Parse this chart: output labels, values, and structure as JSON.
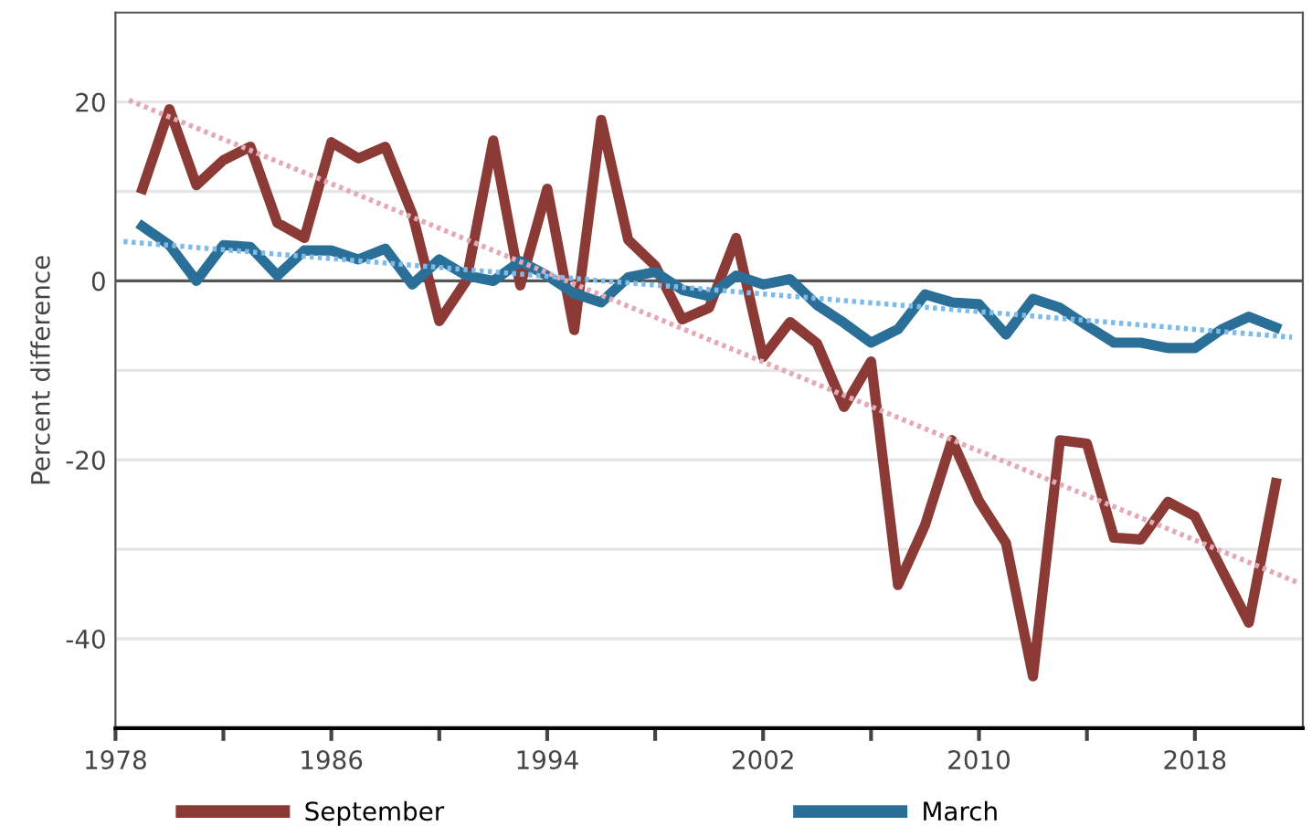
{
  "chart_data": {
    "type": "line",
    "ylabel": "Percent difference",
    "x": [
      1979,
      1980,
      1981,
      1982,
      1983,
      1984,
      1985,
      1986,
      1987,
      1988,
      1989,
      1990,
      1991,
      1992,
      1993,
      1994,
      1995,
      1996,
      1997,
      1998,
      1999,
      2000,
      2001,
      2002,
      2003,
      2004,
      2005,
      2006,
      2007,
      2008,
      2009,
      2010,
      2011,
      2012,
      2013,
      2014,
      2015,
      2016,
      2017,
      2018,
      2019,
      2020,
      2021
    ],
    "series": [
      {
        "name": "September",
        "color": "#8b3a36",
        "values": [
          10.3,
          19.2,
          10.7,
          13.5,
          15,
          6.5,
          4.8,
          15.5,
          13.7,
          15,
          7.5,
          -4.5,
          0,
          15.7,
          -0.5,
          10.3,
          -5.5,
          18,
          4.6,
          1.7,
          -4.3,
          -3,
          4.8,
          -8.5,
          -4.6,
          -7,
          -14.1,
          -9,
          -34,
          -27.3,
          -17.8,
          -24.6,
          -29.3,
          -44.2,
          -17.8,
          -18.2,
          -28.7,
          -28.9,
          -24.7,
          -26.3,
          -32.3,
          -38.2,
          -22.6
        ]
      },
      {
        "name": "March",
        "color": "#2a6f97",
        "values": [
          6.1,
          4,
          0,
          4,
          3.8,
          0.6,
          3.4,
          3.4,
          2.4,
          3.6,
          -0.4,
          2.4,
          0.6,
          0,
          2.2,
          0.6,
          -1.4,
          -2.4,
          0.4,
          1,
          -1,
          -1.7,
          0.6,
          -0.4,
          0.2,
          -2.7,
          -4.7,
          -6.9,
          -5.4,
          -1.5,
          -2.4,
          -2.6,
          -6,
          -2,
          -3,
          -5,
          -6.9,
          -6.9,
          -7.5,
          -7.5,
          -5.4,
          -4,
          -5.2
        ]
      },
      {
        "color": "#e3a9b5",
        "x": [
          1978.5,
          2021.8
        ],
        "values": [
          20.2,
          -33.7
        ],
        "line_style": "dotted"
      },
      {
        "color": "#7fbbe8",
        "x": [
          1978.3,
          2021.6
        ],
        "values": [
          4.4,
          -6.3
        ],
        "line_style": "dotted"
      }
    ],
    "xlim": [
      1978,
      2022
    ],
    "xticks": [
      1978,
      {
        "value": 1982,
        "label": null
      },
      1986,
      {
        "value": 1990,
        "label": null
      },
      1994,
      {
        "value": 1998,
        "label": null
      },
      2002,
      {
        "value": 2006,
        "label": null
      },
      2010,
      {
        "value": 2014,
        "label": null
      },
      2018
    ],
    "ylim": [
      -50,
      30
    ],
    "yticks": [
      {
        "value": -50,
        "label": null
      },
      -40,
      {
        "value": -30,
        "label": null
      },
      -20,
      {
        "value": -10,
        "label": null
      },
      0,
      {
        "value": 10,
        "label": null
      },
      20
    ],
    "ref_lines": [
      {
        "axis": "y",
        "value": 0,
        "color": "#555555"
      }
    ],
    "grid": "y",
    "legend": "bottom",
    "line_style": "solid",
    "marker": "none"
  }
}
